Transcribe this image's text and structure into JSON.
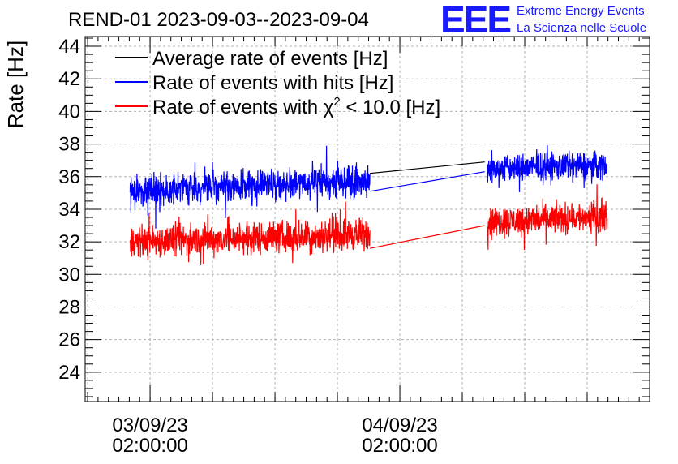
{
  "chart_data": {
    "type": "line",
    "title": "REND-01 2023-09-03--2023-09-04",
    "ylabel": "Rate [Hz]",
    "xlabel": "",
    "ylim": [
      22.2,
      44.6
    ],
    "xlim": [
      -0.26,
      2.0
    ],
    "yticks": [
      24,
      26,
      28,
      30,
      32,
      34,
      36,
      38,
      40,
      42,
      44
    ],
    "xticks": [
      {
        "x": 0,
        "line1": "03/09/23",
        "line2": "02:00:00"
      },
      {
        "x": 1,
        "line1": "04/09/23",
        "line2": "02:00:00"
      }
    ],
    "grid": true,
    "legend_position": "top-left",
    "series": [
      {
        "name": "Average rate of events [Hz]",
        "color": "#000000",
        "segments": [
          {
            "x": [
              0.88,
              1.34
            ],
            "y": [
              36.2,
              36.9
            ]
          }
        ]
      },
      {
        "name": "Rate of events with hits [Hz]",
        "color": "#0000ff",
        "segments": [
          {
            "x_start": -0.08,
            "x_end": 0.88,
            "y_start": 35.1,
            "y_end": 35.8,
            "noise": 0.9
          },
          {
            "x": [
              0.88,
              1.34
            ],
            "y": [
              35.1,
              36.3
            ]
          },
          {
            "x_start": 1.35,
            "x_end": 1.83,
            "y_start": 36.5,
            "y_end": 36.7,
            "noise": 0.8
          }
        ]
      },
      {
        "name": "Rate of events with χ2 < 10.0 [Hz]",
        "color": "#ff0000",
        "segments": [
          {
            "x_start": -0.08,
            "x_end": 0.88,
            "y_start": 32.0,
            "y_end": 32.5,
            "noise": 0.9
          },
          {
            "x": [
              0.88,
              1.34
            ],
            "y": [
              31.6,
              33.0
            ]
          },
          {
            "x_start": 1.35,
            "x_end": 1.83,
            "y_start": 33.2,
            "y_end": 33.6,
            "noise": 0.85
          }
        ]
      }
    ]
  },
  "legend": {
    "entries": [
      {
        "text": "Average rate of events [Hz]",
        "color": "#000000"
      },
      {
        "text": "Rate of events with hits [Hz]",
        "color": "#0000ff"
      },
      {
        "text_before": "Rate of events with ",
        "symbol": "χ",
        "sup": "2",
        "text_after": " < 10.0 [Hz]",
        "color": "#ff0000"
      }
    ]
  },
  "logo": {
    "big": "EEE",
    "line1": "Extreme Energy Events",
    "line2": "La Scienza nelle Scuole",
    "color": "#1a1aff"
  }
}
